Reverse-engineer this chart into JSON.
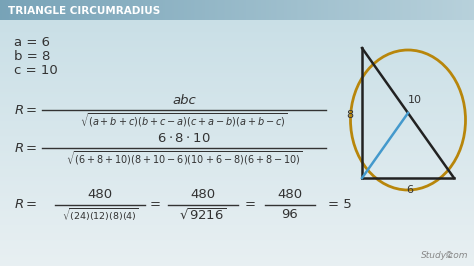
{
  "title": "TRIANGLE CIRCUMRADIUS",
  "bg_color_top": "#c5d8e0",
  "bg_color_bottom": "#e8eef0",
  "title_color_left": "#7aaab8",
  "title_color_right": "#b8cdd4",
  "title_text_color": "#ffffff",
  "text_color": "#333333",
  "study_com_color": "#888888",
  "ellipse_color": "#b8860b",
  "triangle_color": "#222222",
  "radius_color": "#4499cc",
  "var_a": "a = 6",
  "var_b": "b = 8",
  "var_c": "c = 10",
  "label_8": "8",
  "label_10": "10",
  "label_6": "6"
}
